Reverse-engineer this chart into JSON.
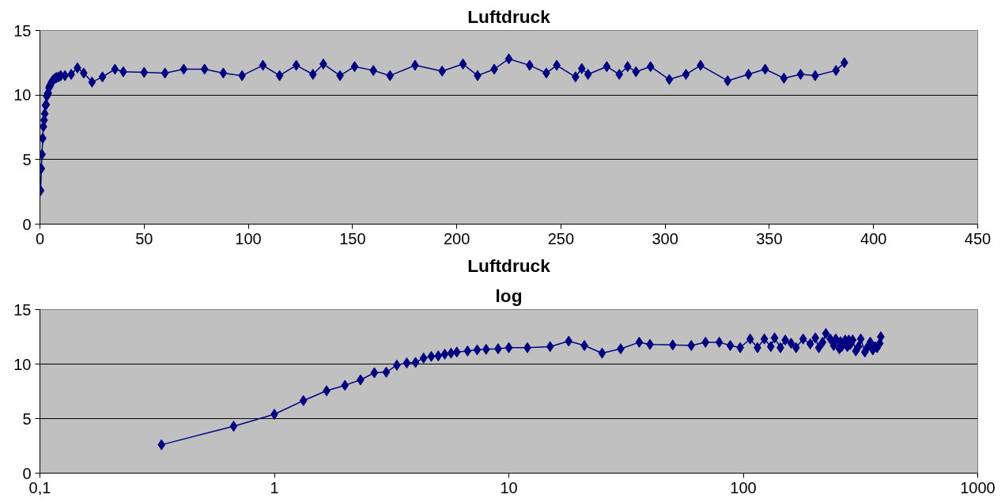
{
  "chart_data": [
    {
      "type": "line",
      "title": "Luftdruck",
      "marker": "diamond",
      "grid": "y",
      "xlim": [
        0,
        450
      ],
      "xticks": [
        0,
        50,
        100,
        150,
        200,
        250,
        300,
        350,
        400,
        450
      ],
      "ylim": [
        0,
        15
      ],
      "yticks": [
        0,
        5,
        10,
        15
      ],
      "series": [
        {
          "color": "#000080",
          "x": [
            0.33,
            0.67,
            1,
            1.33,
            1.67,
            2,
            2.33,
            2.67,
            3,
            3.33,
            3.67,
            4,
            4.33,
            4.67,
            5,
            5.33,
            5.67,
            6,
            6.67,
            7.33,
            8,
            9,
            10,
            12,
            15,
            18,
            21,
            25,
            30,
            36,
            40,
            50,
            60,
            69,
            79,
            88,
            97,
            107,
            115,
            123,
            131,
            136,
            144,
            151,
            160,
            168,
            180,
            193,
            203,
            210,
            218,
            225,
            235,
            243,
            248,
            257,
            260,
            263,
            272,
            278,
            282,
            286,
            293,
            302,
            310,
            317,
            330,
            340,
            348,
            357,
            365,
            372,
            382,
            386
          ],
          "values": [
            2.6,
            4.3,
            5.4,
            6.65,
            7.55,
            8.05,
            8.55,
            9.2,
            9.25,
            9.9,
            10.1,
            10.15,
            10.55,
            10.7,
            10.75,
            10.9,
            11.0,
            11.1,
            11.2,
            11.3,
            11.35,
            11.4,
            11.5,
            11.5,
            11.6,
            12.1,
            11.7,
            11.0,
            11.4,
            12.0,
            11.8,
            11.75,
            11.7,
            12.0,
            12.0,
            11.7,
            11.5,
            12.3,
            11.5,
            12.3,
            11.6,
            12.4,
            11.5,
            12.2,
            11.9,
            11.5,
            12.3,
            11.85,
            12.4,
            11.5,
            12.0,
            12.8,
            12.3,
            11.7,
            12.3,
            11.4,
            12.05,
            11.6,
            12.2,
            11.6,
            12.2,
            11.8,
            12.2,
            11.2,
            11.6,
            12.3,
            11.1,
            11.6,
            12.0,
            11.3,
            11.6,
            11.5,
            11.9,
            12.5
          ]
        }
      ]
    },
    {
      "type": "line",
      "title": "Luftdruck",
      "subtitle": "log",
      "marker": "diamond",
      "grid": "y",
      "log": "x",
      "xlim": [
        0.1,
        1000
      ],
      "xticks": [
        {
          "value": 0.1,
          "label": "0,1"
        },
        1,
        10,
        100,
        1000
      ],
      "ylim": [
        0,
        15
      ],
      "yticks": [
        0,
        5,
        10,
        15
      ],
      "series": [
        {
          "color": "#000080",
          "x": [
            0.33,
            0.67,
            1,
            1.33,
            1.67,
            2,
            2.33,
            2.67,
            3,
            3.33,
            3.67,
            4,
            4.33,
            4.67,
            5,
            5.33,
            5.67,
            6,
            6.67,
            7.33,
            8,
            9,
            10,
            12,
            15,
            18,
            21,
            25,
            30,
            36,
            40,
            50,
            60,
            69,
            79,
            88,
            97,
            107,
            115,
            123,
            131,
            136,
            144,
            151,
            160,
            168,
            180,
            193,
            203,
            210,
            218,
            225,
            235,
            243,
            248,
            257,
            260,
            263,
            272,
            278,
            282,
            286,
            293,
            302,
            310,
            317,
            330,
            340,
            348,
            357,
            365,
            372,
            382,
            386
          ],
          "values": [
            2.6,
            4.3,
            5.4,
            6.65,
            7.55,
            8.05,
            8.55,
            9.2,
            9.25,
            9.9,
            10.1,
            10.15,
            10.55,
            10.7,
            10.75,
            10.9,
            11.0,
            11.1,
            11.2,
            11.3,
            11.35,
            11.4,
            11.5,
            11.5,
            11.6,
            12.1,
            11.7,
            11.0,
            11.4,
            12.0,
            11.8,
            11.75,
            11.7,
            12.0,
            12.0,
            11.7,
            11.5,
            12.3,
            11.5,
            12.3,
            11.6,
            12.4,
            11.5,
            12.2,
            11.9,
            11.5,
            12.3,
            11.85,
            12.4,
            11.5,
            12.0,
            12.8,
            12.3,
            11.7,
            12.3,
            11.4,
            12.05,
            11.6,
            12.2,
            11.6,
            12.2,
            11.8,
            12.2,
            11.2,
            11.6,
            12.3,
            11.1,
            11.6,
            12.0,
            11.3,
            11.6,
            11.5,
            11.9,
            12.5
          ]
        }
      ]
    }
  ]
}
